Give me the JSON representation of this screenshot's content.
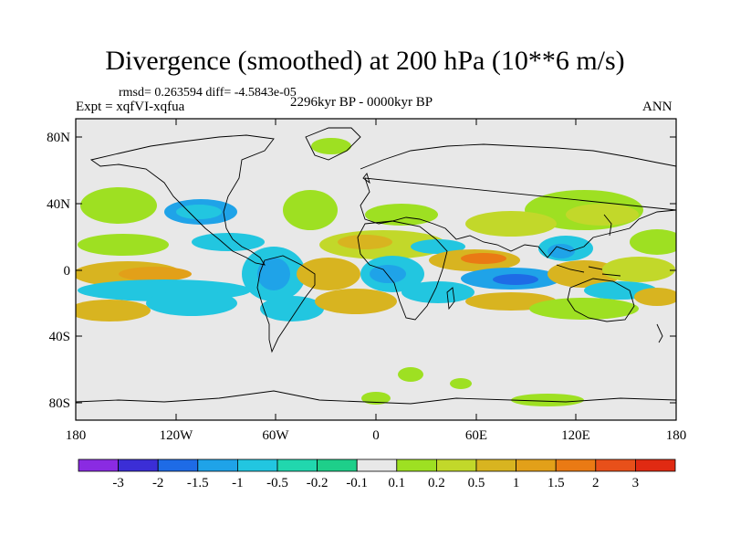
{
  "title": "Divergence (smoothed) at 200 hPa (10**6 m/s)",
  "rmsd_text": "rmsd= 0.263594 diff= -4.5843e-05",
  "expt_text": "Expt = xqfVI-xqfua",
  "period_text": "2296kyr BP - 0000kyr BP",
  "season": "ANN",
  "lat_ticks": [
    "80N",
    "40N",
    "0",
    "40S",
    "80S"
  ],
  "lon_ticks": [
    "180",
    "120W",
    "60W",
    "0",
    "60E",
    "120E",
    "180"
  ],
  "colorbar": {
    "colors": [
      "#8a2be2",
      "#3b2ed6",
      "#1e6be6",
      "#1fa3e8",
      "#22c6e0",
      "#21d7ae",
      "#1ecf8a",
      "#e8e8e8",
      "#9ee022",
      "#c2d82a",
      "#d8b420",
      "#e2a019",
      "#ea7a14",
      "#e8501a",
      "#e02a12"
    ],
    "labels": [
      "-3",
      "-2",
      "-1.5",
      "-1",
      "-0.5",
      "-0.2",
      "-0.1",
      "0.1",
      "0.2",
      "0.5",
      "1",
      "1.5",
      "2",
      "3"
    ]
  },
  "chart_data": {
    "type": "heatmap",
    "variable": "Divergence (smoothed) at 200 hPa",
    "units": "10**6 m/s",
    "x_range_deg": [
      -180,
      180
    ],
    "y_range_deg": [
      -90,
      90
    ],
    "levels": [
      -3,
      -2,
      -1.5,
      -1,
      -0.5,
      -0.2,
      -0.1,
      0.1,
      0.2,
      0.5,
      1,
      1.5,
      2,
      3
    ],
    "features": [
      {
        "name": "north-pacific-positive",
        "lon": -150,
        "lat": 40,
        "value": 0.2
      },
      {
        "name": "north-atlantic-positive",
        "lon": -25,
        "lat": 35,
        "value": 0.2
      },
      {
        "name": "greenland-positive",
        "lon": -40,
        "lat": 72,
        "value": 0.2
      },
      {
        "name": "east-pacific-negative",
        "lon": -120,
        "lat": 20,
        "value": -0.5
      },
      {
        "name": "tropical-pacific-positive",
        "lon": -170,
        "lat": -10,
        "value": 0.5
      },
      {
        "name": "south-pacific-positive",
        "lon": -160,
        "lat": -25,
        "value": 1.0
      },
      {
        "name": "andes-negative",
        "lon": -70,
        "lat": -10,
        "value": -1.0
      },
      {
        "name": "south-america-negative",
        "lon": -45,
        "lat": -20,
        "value": -1.0
      },
      {
        "name": "atlantic-positive",
        "lon": -25,
        "lat": 0,
        "value": 0.5
      },
      {
        "name": "sahara-positive",
        "lon": 10,
        "lat": 15,
        "value": 0.5
      },
      {
        "name": "central-africa-negative",
        "lon": 15,
        "lat": -2,
        "value": -1.0
      },
      {
        "name": "arabia-positive",
        "lon": 45,
        "lat": 25,
        "value": 0.5
      },
      {
        "name": "indian-ocean-positive",
        "lon": 60,
        "lat": -5,
        "value": 1.0
      },
      {
        "name": "indian-ocean-negative",
        "lon": 80,
        "lat": -8,
        "value": -1.0
      },
      {
        "name": "tibet-positive",
        "lon": 90,
        "lat": 30,
        "value": 0.5
      },
      {
        "name": "maritime-continent-negative",
        "lon": 120,
        "lat": 10,
        "value": -0.5
      },
      {
        "name": "indonesia-positive",
        "lon": 120,
        "lat": -5,
        "value": 1.0
      },
      {
        "name": "nw-pacific-positive",
        "lon": 150,
        "lat": 35,
        "value": 0.5
      },
      {
        "name": "southern-ocean-positive",
        "lon": 15,
        "lat": -55,
        "value": 0.2
      },
      {
        "name": "antarctic-positive",
        "lon": 0,
        "lat": -75,
        "value": 0.2
      }
    ]
  }
}
